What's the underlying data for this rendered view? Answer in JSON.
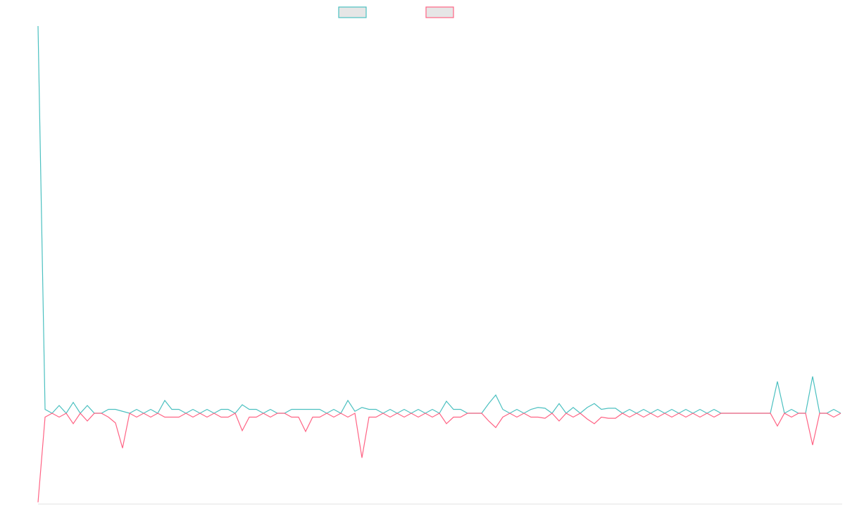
{
  "chart_data": {
    "type": "line",
    "ylim": [
      -23,
      100
    ],
    "series": [
      {
        "color": "#4bc0c0",
        "values": [
          100,
          1,
          0,
          2,
          0,
          2.8,
          0,
          2,
          0,
          0,
          1,
          1,
          0.5,
          0,
          1,
          0,
          1,
          0,
          3.3,
          1,
          1,
          0,
          1,
          0,
          1,
          0,
          1,
          1,
          0,
          2.2,
          1,
          1,
          0,
          1,
          0,
          0,
          1,
          1,
          1,
          1,
          1,
          0,
          1,
          0,
          3.3,
          0.5,
          1.5,
          1,
          1,
          0,
          1,
          0,
          1,
          0,
          1,
          0,
          1,
          0,
          3.1,
          1,
          1,
          0,
          0,
          0,
          2.5,
          4.7,
          1,
          0,
          1,
          0,
          1,
          1.5,
          1.3,
          0,
          2.5,
          0,
          1.5,
          0,
          1.5,
          2.5,
          1,
          1.3,
          1.3,
          0,
          1,
          0,
          1,
          0,
          1,
          0,
          1,
          0,
          1,
          0,
          1,
          0,
          1,
          0,
          0,
          0,
          0,
          0,
          0,
          0,
          0,
          8.2,
          0,
          1,
          0,
          0,
          9.5,
          0,
          0,
          1,
          0
        ]
      },
      {
        "color": "#ff6384",
        "values": [
          -23,
          -1,
          0,
          -1,
          0,
          -2.7,
          0,
          -2,
          0,
          0,
          -1,
          -2.5,
          -9,
          0,
          -1,
          0,
          -1,
          0,
          -1,
          -1,
          -1,
          0,
          -1,
          0,
          -1,
          0,
          -1,
          -1,
          0,
          -4.5,
          -1,
          -1,
          0,
          -1,
          0,
          0,
          -1,
          -1,
          -4.7,
          -1,
          -1,
          0,
          -1,
          0,
          -1,
          0,
          -11.5,
          -1,
          -1,
          0,
          -1,
          0,
          -1,
          0,
          -1,
          0,
          -1,
          0,
          -2.7,
          -1,
          -1,
          0,
          0,
          0,
          -2,
          -3.7,
          -1,
          0,
          -1,
          0,
          -1,
          -1,
          -1.3,
          0,
          -2,
          0,
          -1,
          0,
          -1.5,
          -2.7,
          -1,
          -1.3,
          -1.3,
          0,
          -1,
          0,
          -1,
          0,
          -1,
          0,
          -1,
          0,
          -1,
          0,
          -1,
          0,
          -1,
          0,
          0,
          0,
          0,
          0,
          0,
          0,
          0,
          -3.3,
          0,
          -1,
          0,
          0,
          -8.2,
          0,
          0,
          -1,
          0
        ]
      }
    ]
  }
}
